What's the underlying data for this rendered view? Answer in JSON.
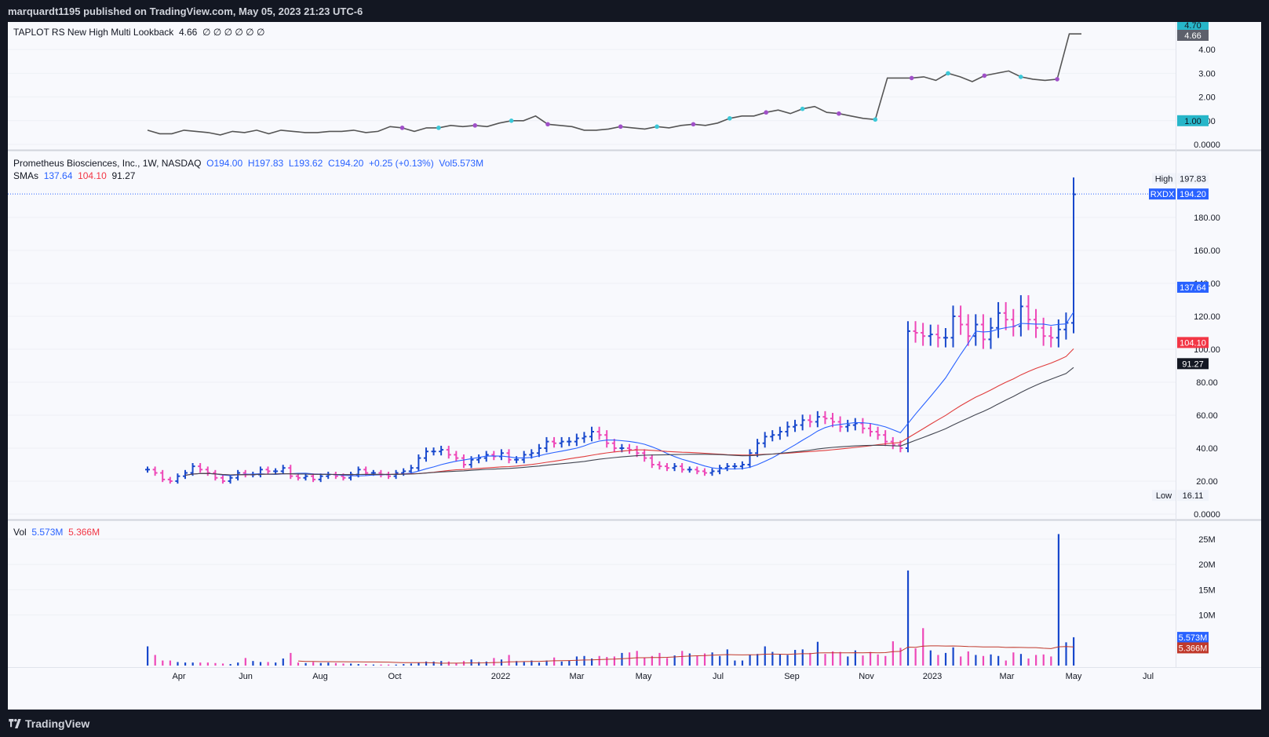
{
  "header": {
    "published_by": "marquardt1195 published on TradingView.com, May 05, 2023 21:23 UTC-6"
  },
  "footer": {
    "brand": "TradingView"
  },
  "indicator_pane": {
    "name": "TAPLOT RS New High Multi Lookback",
    "value": "4.66",
    "zeros": "∅  ∅  ∅  ∅  ∅  ∅",
    "ticks": [
      "4.00",
      "3.00",
      "2.00",
      "1.00",
      "0.0000"
    ],
    "tag_top": "4.70",
    "tag_value": "4.66",
    "tag_one": "1.00"
  },
  "price_pane": {
    "symbol_line": {
      "name": "Prometheus Biosciences, Inc., 1W, NASDAQ",
      "open": "O194.00",
      "high": "H197.83",
      "low": "L193.62",
      "close": "C194.20",
      "change": "+0.25 (+0.13%)",
      "vol": "Vol5.573M"
    },
    "sma_line": {
      "label": "SMAs",
      "v1": "137.64",
      "v2": "104.10",
      "v3": "91.27"
    },
    "ticks": [
      "180.00",
      "160.00",
      "140.00",
      "120.00",
      "100.00",
      "80.00",
      "60.00",
      "40.00",
      "20.00",
      "0.0000"
    ],
    "high_label": "High",
    "high_value": "197.83",
    "ticker": "RXDX",
    "last_price": "194.20",
    "low_label": "Low",
    "low_value": "16.11",
    "sma_tags": [
      "137.64",
      "104.10",
      "91.27"
    ]
  },
  "volume_pane": {
    "label": "Vol",
    "v1": "5.573M",
    "v2": "5.366M",
    "ticks": [
      "25M",
      "20M",
      "15M",
      "10M"
    ],
    "tags": [
      "5.573M",
      "5.366M"
    ]
  },
  "x_axis": [
    "Apr",
    "Jun",
    "Aug",
    "Oct",
    "2022",
    "Mar",
    "May",
    "Jul",
    "Sep",
    "Nov",
    "2023",
    "Mar",
    "May",
    "Jul"
  ],
  "colors": {
    "up": "#1848cc",
    "down": "#ee48b8",
    "sma_fast": "#2962ff",
    "sma_mid": "#e03c3c",
    "sma_slow": "#434651",
    "rs_line": "#555555",
    "rs_dot_cyan": "#3cc8d8",
    "rs_dot_purple": "#a050c8"
  },
  "chart_data": {
    "type": "ohlc-bar",
    "weekly_close": [
      27,
      25,
      21,
      20,
      23,
      25,
      29,
      27,
      25,
      22,
      20,
      22,
      25,
      24,
      24,
      27,
      26,
      26,
      28,
      23,
      22,
      23,
      21,
      23,
      24,
      23,
      22,
      24,
      27,
      25,
      25,
      24,
      23,
      25,
      26,
      28,
      34,
      38,
      38,
      39,
      36,
      34,
      30,
      33,
      34,
      36,
      35,
      37,
      33,
      33,
      36,
      37,
      40,
      44,
      43,
      44,
      44,
      46,
      47,
      50,
      48,
      43,
      40,
      40,
      39,
      37,
      34,
      30,
      29,
      28,
      29,
      27,
      27,
      26,
      25,
      26,
      28,
      29,
      29,
      30,
      37,
      43,
      47,
      48,
      50,
      53,
      54,
      57,
      56,
      59,
      58,
      56,
      53,
      54,
      55,
      52,
      50,
      48,
      44,
      42,
      40,
      111,
      110,
      108,
      109,
      107,
      107,
      120,
      115,
      108,
      115,
      106,
      113,
      122,
      118,
      114,
      126,
      118,
      113,
      108,
      107,
      112,
      116,
      194
    ],
    "weekly_volume_m": [
      3.8,
      2.1,
      1.0,
      1.0,
      0.7,
      0.6,
      0.6,
      0.6,
      0.6,
      0.5,
      0.4,
      0.3,
      0.6,
      1.5,
      0.9,
      0.7,
      0.7,
      0.6,
      1.4,
      2.5,
      0.6,
      0.5,
      0.7,
      0.5,
      0.6,
      0.5,
      0.4,
      0.4,
      0.3,
      0.3,
      0.2,
      0.2,
      0.2,
      0.2,
      0.3,
      0.4,
      0.6,
      0.8,
      0.8,
      0.9,
      0.8,
      0.5,
      0.9,
      1.2,
      0.7,
      0.8,
      1.5,
      1.2,
      2.1,
      0.9,
      0.7,
      1.0,
      0.6,
      1.0,
      1.6,
      0.8,
      1.0,
      1.8,
      1.9,
      1.4,
      1.9,
      1.7,
      1.8,
      2.5,
      2.6,
      2.9,
      1.6,
      1.9,
      2.5,
      1.5,
      2.0,
      2.9,
      2.4,
      2.0,
      2.4,
      2.6,
      1.9,
      3.2,
      1.0,
      1.0,
      2.1,
      2.3,
      3.8,
      2.7,
      2.2,
      2.1,
      3.1,
      3.2,
      2.5,
      4.7,
      2.3,
      2.8,
      2.7,
      1.8,
      3.0,
      2.0,
      2.7,
      2.2,
      1.9,
      4.8,
      3.5,
      18.8,
      3.4,
      7.4,
      3.0,
      2.1,
      2.5,
      3.6,
      1.8,
      2.8,
      2.1,
      1.9,
      2.2,
      1.9,
      1.0,
      2.6,
      2.3,
      1.4,
      2.1,
      2.2,
      1.8,
      26.0,
      4.6,
      5.6
    ],
    "sma_fast_current": 137.64,
    "sma_mid_current": 104.1,
    "sma_slow_current": 91.27,
    "last": {
      "open": 194.0,
      "high": 197.83,
      "low": 193.62,
      "close": 194.2
    },
    "ylim_price": [
      0,
      200
    ],
    "ylim_volume": [
      0,
      27
    ],
    "rs_line": [
      0.6,
      0.45,
      0.45,
      0.6,
      0.55,
      0.5,
      0.4,
      0.55,
      0.5,
      0.6,
      0.45,
      0.6,
      0.55,
      0.5,
      0.5,
      0.55,
      0.55,
      0.6,
      0.5,
      0.55,
      0.75,
      0.7,
      0.55,
      0.7,
      0.7,
      0.8,
      0.75,
      0.8,
      0.75,
      0.9,
      1.0,
      1.0,
      1.2,
      0.85,
      0.8,
      0.75,
      0.6,
      0.6,
      0.65,
      0.75,
      0.7,
      0.65,
      0.75,
      0.7,
      0.8,
      0.85,
      0.8,
      0.9,
      1.1,
      1.2,
      1.2,
      1.35,
      1.45,
      1.3,
      1.5,
      1.6,
      1.35,
      1.3,
      1.2,
      1.1,
      1.05,
      2.8,
      2.8,
      2.8,
      2.85,
      2.7,
      3.0,
      2.85,
      2.65,
      2.9,
      3.0,
      3.1,
      2.85,
      2.75,
      2.7,
      2.75,
      4.66,
      4.66
    ],
    "ylim_rs": [
      0,
      4.9
    ]
  }
}
